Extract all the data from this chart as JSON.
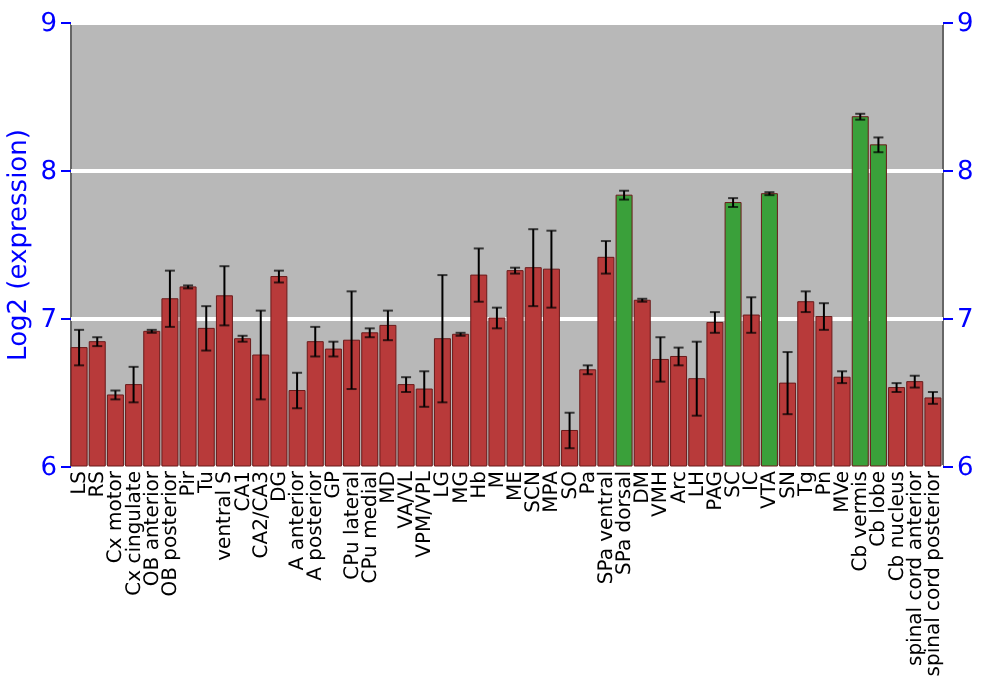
{
  "chart_data": {
    "type": "bar",
    "ylabel": "Log2 (expression)",
    "categories": [
      "LS",
      "RS",
      "Cx motor",
      "Cx cingulate",
      "OB anterior",
      "OB posterior",
      "Pir",
      "Tu",
      "ventral S",
      "CA1",
      "CA2/CA3",
      "DG",
      "A anterior",
      "A posterior",
      "GP",
      "CPu lateral",
      "CPu medial",
      "MD",
      "VA/VL",
      "VPM/VPL",
      "LG",
      "MG",
      "Hb",
      "M",
      "ME",
      "SCN",
      "MPA",
      "SO",
      "Pa",
      "SPa ventral",
      "SPa dorsal",
      "DM",
      "VMH",
      "Arc",
      "LH",
      "PAG",
      "SC",
      "IC",
      "VTA",
      "SN",
      "Tg",
      "Pn",
      "MVe",
      "Cb vermis",
      "Cb lobe",
      "Cb nucleus",
      "spinal cord anterior",
      "spinal cord posterior"
    ],
    "values": [
      6.8,
      6.84,
      6.48,
      6.55,
      6.91,
      7.13,
      7.21,
      6.93,
      7.15,
      6.86,
      6.75,
      7.28,
      6.51,
      6.84,
      6.79,
      6.85,
      6.9,
      6.95,
      6.55,
      6.52,
      6.86,
      6.89,
      7.29,
      7.0,
      7.32,
      7.34,
      7.33,
      6.24,
      6.65,
      7.41,
      7.83,
      7.12,
      6.72,
      6.74,
      6.59,
      6.97,
      7.78,
      7.02,
      7.84,
      6.56,
      7.11,
      7.01,
      6.6,
      8.36,
      8.17,
      6.53,
      6.57,
      6.46
    ],
    "errors": [
      0.12,
      0.03,
      0.03,
      0.12,
      0.01,
      0.19,
      0.01,
      0.15,
      0.2,
      0.02,
      0.3,
      0.04,
      0.12,
      0.1,
      0.05,
      0.33,
      0.03,
      0.1,
      0.05,
      0.12,
      0.43,
      0.01,
      0.18,
      0.07,
      0.02,
      0.26,
      0.26,
      0.12,
      0.03,
      0.11,
      0.03,
      0.01,
      0.15,
      0.06,
      0.25,
      0.07,
      0.03,
      0.12,
      0.01,
      0.21,
      0.07,
      0.09,
      0.04,
      0.02,
      0.05,
      0.03,
      0.04,
      0.04
    ],
    "colors": [
      "#b83a3a",
      "#b83a3a",
      "#b83a3a",
      "#b83a3a",
      "#b83a3a",
      "#b83a3a",
      "#b83a3a",
      "#b83a3a",
      "#b83a3a",
      "#b83a3a",
      "#b83a3a",
      "#b83a3a",
      "#b83a3a",
      "#b83a3a",
      "#b83a3a",
      "#b83a3a",
      "#b83a3a",
      "#b83a3a",
      "#b83a3a",
      "#b83a3a",
      "#b83a3a",
      "#b83a3a",
      "#b83a3a",
      "#b83a3a",
      "#b83a3a",
      "#b83a3a",
      "#b83a3a",
      "#b83a3a",
      "#b83a3a",
      "#b83a3a",
      "#3aa03a",
      "#b83a3a",
      "#b83a3a",
      "#b83a3a",
      "#b83a3a",
      "#b83a3a",
      "#3aa03a",
      "#b83a3a",
      "#3aa03a",
      "#b83a3a",
      "#b83a3a",
      "#b83a3a",
      "#b83a3a",
      "#3aa03a",
      "#3aa03a",
      "#b83a3a",
      "#b83a3a",
      "#b83a3a"
    ],
    "ylim": [
      6,
      9
    ],
    "yticks": [
      6,
      7,
      8,
      9
    ],
    "y2lim": [
      6,
      9
    ],
    "y2ticks": [
      6,
      7,
      8,
      9
    ],
    "grid": "y"
  }
}
